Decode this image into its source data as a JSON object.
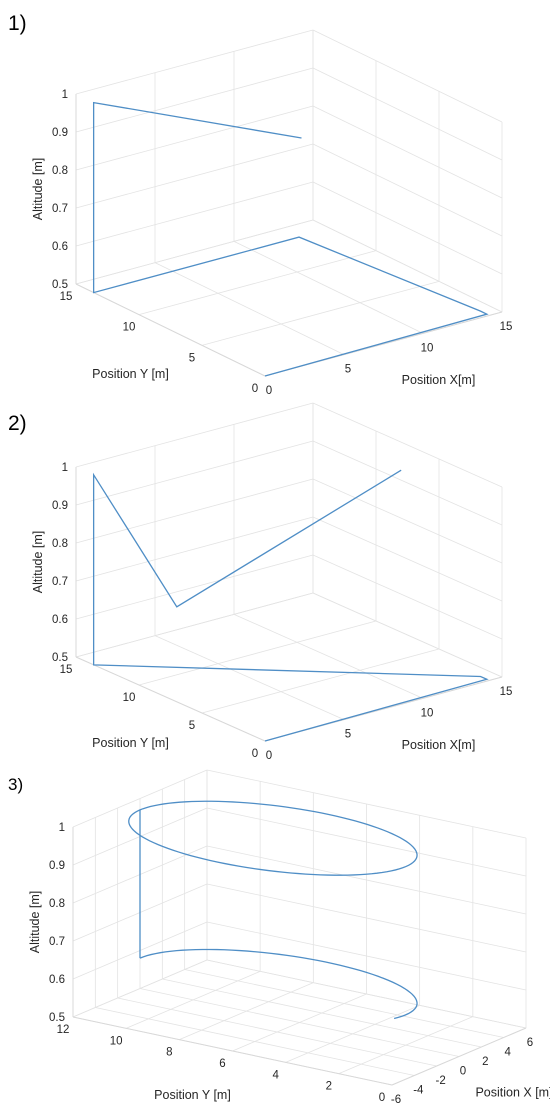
{
  "colors": {
    "line": "#4f8ec6",
    "grid": "#e3e3e3",
    "box": "#d8d8d8",
    "text": "#262626"
  },
  "chart_data": [
    {
      "type": "line3d",
      "panel_label": "1)",
      "xlabel": "Position X[m]",
      "ylabel": "Position Y [m]",
      "zlabel": "Altitude [m]",
      "xlim": [
        0,
        15
      ],
      "ylim": [
        0,
        15
      ],
      "zlim": [
        0.5,
        1
      ],
      "xticks": [
        "0",
        "5",
        "10",
        "15"
      ],
      "yticks": [
        "0",
        "5",
        "10",
        "15"
      ],
      "zticks": [
        "0.5",
        "0.6",
        "0.7",
        "0.8",
        "0.9",
        "1"
      ],
      "grid": true,
      "series": [
        {
          "x": [
            0,
            14.2,
            14.2,
            13.0,
            0,
            0,
            5.5
          ],
          "y": [
            0,
            0.2,
            0.7,
            13.6,
            13.6,
            13.6,
            4.0
          ],
          "z": [
            0.5,
            0.5,
            0.5,
            0.5,
            0.5,
            1.0,
            1.0
          ]
        }
      ]
    },
    {
      "type": "line3d",
      "panel_label": "2)",
      "xlabel": "Position X[m]",
      "ylabel": "Position Y [m]",
      "zlabel": "Altitude [m]",
      "xlim": [
        0,
        15
      ],
      "ylim": [
        0,
        15
      ],
      "zlim": [
        0.5,
        1
      ],
      "xticks": [
        "0",
        "5",
        "10",
        "15"
      ],
      "yticks": [
        "0",
        "5",
        "10",
        "15"
      ],
      "zticks": [
        "0.5",
        "0.6",
        "0.7",
        "0.8",
        "0.9",
        "1"
      ],
      "grid": true,
      "series": [
        {
          "x": [
            0,
            14.2,
            14.2,
            0,
            0,
            0,
            14.2
          ],
          "y": [
            0,
            0.2,
            0.7,
            13.6,
            13.6,
            7.0,
            7.0
          ],
          "z": [
            0.5,
            0.5,
            0.5,
            0.5,
            1.0,
            0.75,
            0.95
          ]
        }
      ]
    },
    {
      "type": "line3d",
      "panel_label": "3)",
      "xlabel": "Position X [m]",
      "ylabel": "Position Y [m]",
      "zlabel": "Altitude [m]",
      "xlim": [
        -6,
        6
      ],
      "ylim": [
        0,
        12
      ],
      "zlim": [
        0.5,
        1
      ],
      "xticks": [
        "-6",
        "-4",
        "-2",
        "0",
        "2",
        "4",
        "6"
      ],
      "yticks": [
        "0",
        "2",
        "4",
        "6",
        "8",
        "10",
        "12"
      ],
      "zticks": [
        "0.5",
        "0.6",
        "0.7",
        "0.8",
        "0.9",
        "1"
      ],
      "grid": true,
      "series": [
        {
          "description_free": true,
          "circle": {
            "cx": 0,
            "cy": 7,
            "r": 5,
            "z": 0.97
          },
          "vertical": {
            "x": 0,
            "y": 12,
            "z0": 0.58,
            "z1": 0.97
          },
          "arc": {
            "cx": 0,
            "cy": 7,
            "r": 5,
            "z": 0.58,
            "start_deg": 90,
            "end_deg": -100
          }
        }
      ]
    }
  ]
}
